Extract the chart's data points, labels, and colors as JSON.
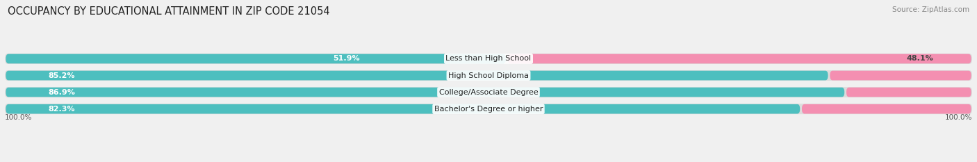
{
  "title": "OCCUPANCY BY EDUCATIONAL ATTAINMENT IN ZIP CODE 21054",
  "source": "Source: ZipAtlas.com",
  "categories": [
    "Less than High School",
    "High School Diploma",
    "College/Associate Degree",
    "Bachelor's Degree or higher"
  ],
  "owner_pct": [
    51.9,
    85.2,
    86.9,
    82.3
  ],
  "renter_pct": [
    48.1,
    14.8,
    13.1,
    17.7
  ],
  "owner_color": "#4dbfbf",
  "renter_color": "#f48fb1",
  "bg_color": "#f0f0f0",
  "bar_bg_color": "#dcdcdc",
  "title_fontsize": 10.5,
  "label_fontsize": 8.0,
  "axis_label_fontsize": 7.5,
  "legend_fontsize": 8.0,
  "x_left_label": "100.0%",
  "x_right_label": "100.0%"
}
